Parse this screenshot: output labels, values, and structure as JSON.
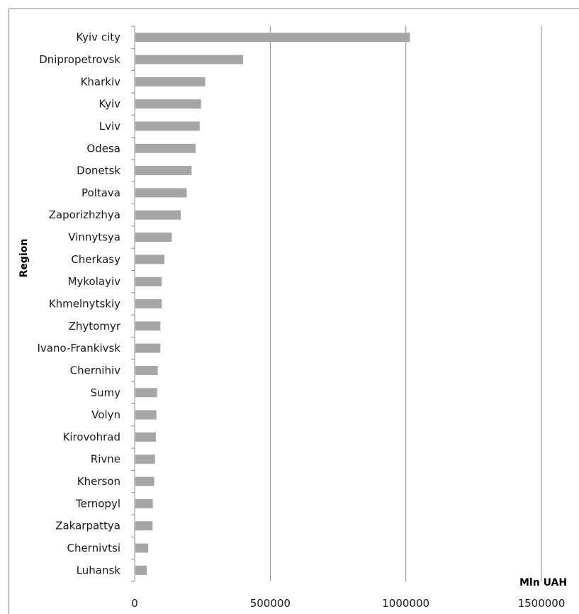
{
  "chart_data": {
    "type": "bar",
    "orientation": "horizontal",
    "categories": [
      "Kyiv city",
      "Dnipropetrovsk",
      "Kharkiv",
      "Kyiv",
      "Lviv",
      "Odesa",
      "Donetsk",
      "Poltava",
      "Zaporizhzhya",
      "Vinnytsya",
      "Cherkasy",
      "Mykolayiv",
      "Khmelnytskiy",
      "Zhytomyr",
      "Ivano-Frankivsk",
      "Chernihiv",
      "Sumy",
      "Volyn",
      "Kirovohrad",
      "Rivne",
      "Kherson",
      "Ternopyl",
      "Zakarpattya",
      "Chernivtsi",
      "Luhansk"
    ],
    "values": [
      1015000,
      400000,
      260000,
      245000,
      240000,
      225000,
      210000,
      192000,
      170000,
      137000,
      110000,
      100000,
      100000,
      95000,
      95000,
      85000,
      83000,
      80000,
      78000,
      75000,
      72000,
      67000,
      66000,
      50000,
      45000
    ],
    "xlabel": "Mln UAH",
    "ylabel": "Region",
    "xlim": [
      0,
      1500000
    ],
    "xticks": [
      0,
      500000,
      1000000,
      1500000
    ],
    "xtick_labels": [
      "0",
      "500000",
      "1000000",
      "1500000"
    ],
    "grid": true,
    "legend": "none",
    "bar_color": "#a6a6a6",
    "grid_color": "#8c8c8c"
  }
}
